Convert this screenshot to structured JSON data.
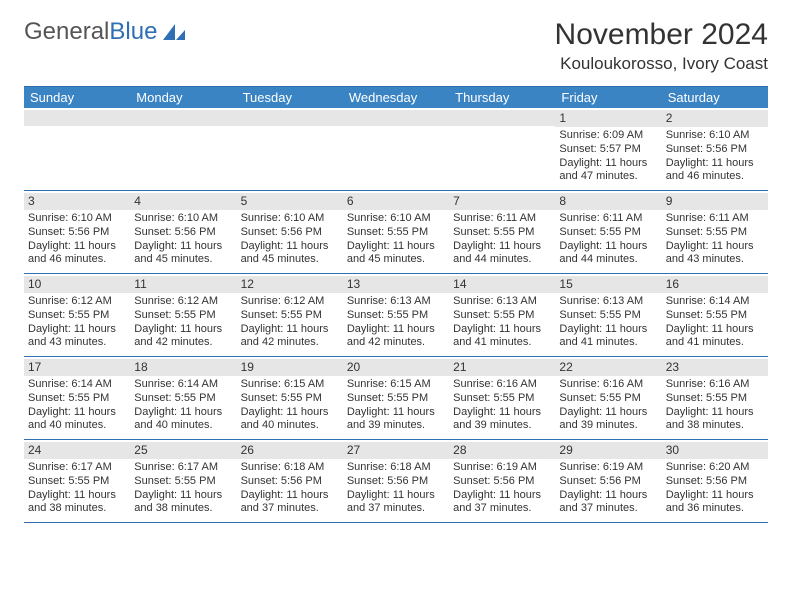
{
  "logo": {
    "part1": "General",
    "part2": "Blue"
  },
  "title": "November 2024",
  "location": "Kouloukorosso, Ivory Coast",
  "day_headers": [
    "Sunday",
    "Monday",
    "Tuesday",
    "Wednesday",
    "Thursday",
    "Friday",
    "Saturday"
  ],
  "colors": {
    "header_bg": "#3b84c4",
    "border": "#2f6fb3",
    "row_stripe": "#e6e6e6",
    "text": "#333333",
    "logo_gray": "#555555",
    "logo_blue": "#2f6fb3"
  },
  "weeks": [
    [
      null,
      null,
      null,
      null,
      null,
      {
        "n": "1",
        "sr": "Sunrise: 6:09 AM",
        "ss": "Sunset: 5:57 PM",
        "d1": "Daylight: 11 hours",
        "d2": "and 47 minutes."
      },
      {
        "n": "2",
        "sr": "Sunrise: 6:10 AM",
        "ss": "Sunset: 5:56 PM",
        "d1": "Daylight: 11 hours",
        "d2": "and 46 minutes."
      }
    ],
    [
      {
        "n": "3",
        "sr": "Sunrise: 6:10 AM",
        "ss": "Sunset: 5:56 PM",
        "d1": "Daylight: 11 hours",
        "d2": "and 46 minutes."
      },
      {
        "n": "4",
        "sr": "Sunrise: 6:10 AM",
        "ss": "Sunset: 5:56 PM",
        "d1": "Daylight: 11 hours",
        "d2": "and 45 minutes."
      },
      {
        "n": "5",
        "sr": "Sunrise: 6:10 AM",
        "ss": "Sunset: 5:56 PM",
        "d1": "Daylight: 11 hours",
        "d2": "and 45 minutes."
      },
      {
        "n": "6",
        "sr": "Sunrise: 6:10 AM",
        "ss": "Sunset: 5:55 PM",
        "d1": "Daylight: 11 hours",
        "d2": "and 45 minutes."
      },
      {
        "n": "7",
        "sr": "Sunrise: 6:11 AM",
        "ss": "Sunset: 5:55 PM",
        "d1": "Daylight: 11 hours",
        "d2": "and 44 minutes."
      },
      {
        "n": "8",
        "sr": "Sunrise: 6:11 AM",
        "ss": "Sunset: 5:55 PM",
        "d1": "Daylight: 11 hours",
        "d2": "and 44 minutes."
      },
      {
        "n": "9",
        "sr": "Sunrise: 6:11 AM",
        "ss": "Sunset: 5:55 PM",
        "d1": "Daylight: 11 hours",
        "d2": "and 43 minutes."
      }
    ],
    [
      {
        "n": "10",
        "sr": "Sunrise: 6:12 AM",
        "ss": "Sunset: 5:55 PM",
        "d1": "Daylight: 11 hours",
        "d2": "and 43 minutes."
      },
      {
        "n": "11",
        "sr": "Sunrise: 6:12 AM",
        "ss": "Sunset: 5:55 PM",
        "d1": "Daylight: 11 hours",
        "d2": "and 42 minutes."
      },
      {
        "n": "12",
        "sr": "Sunrise: 6:12 AM",
        "ss": "Sunset: 5:55 PM",
        "d1": "Daylight: 11 hours",
        "d2": "and 42 minutes."
      },
      {
        "n": "13",
        "sr": "Sunrise: 6:13 AM",
        "ss": "Sunset: 5:55 PM",
        "d1": "Daylight: 11 hours",
        "d2": "and 42 minutes."
      },
      {
        "n": "14",
        "sr": "Sunrise: 6:13 AM",
        "ss": "Sunset: 5:55 PM",
        "d1": "Daylight: 11 hours",
        "d2": "and 41 minutes."
      },
      {
        "n": "15",
        "sr": "Sunrise: 6:13 AM",
        "ss": "Sunset: 5:55 PM",
        "d1": "Daylight: 11 hours",
        "d2": "and 41 minutes."
      },
      {
        "n": "16",
        "sr": "Sunrise: 6:14 AM",
        "ss": "Sunset: 5:55 PM",
        "d1": "Daylight: 11 hours",
        "d2": "and 41 minutes."
      }
    ],
    [
      {
        "n": "17",
        "sr": "Sunrise: 6:14 AM",
        "ss": "Sunset: 5:55 PM",
        "d1": "Daylight: 11 hours",
        "d2": "and 40 minutes."
      },
      {
        "n": "18",
        "sr": "Sunrise: 6:14 AM",
        "ss": "Sunset: 5:55 PM",
        "d1": "Daylight: 11 hours",
        "d2": "and 40 minutes."
      },
      {
        "n": "19",
        "sr": "Sunrise: 6:15 AM",
        "ss": "Sunset: 5:55 PM",
        "d1": "Daylight: 11 hours",
        "d2": "and 40 minutes."
      },
      {
        "n": "20",
        "sr": "Sunrise: 6:15 AM",
        "ss": "Sunset: 5:55 PM",
        "d1": "Daylight: 11 hours",
        "d2": "and 39 minutes."
      },
      {
        "n": "21",
        "sr": "Sunrise: 6:16 AM",
        "ss": "Sunset: 5:55 PM",
        "d1": "Daylight: 11 hours",
        "d2": "and 39 minutes."
      },
      {
        "n": "22",
        "sr": "Sunrise: 6:16 AM",
        "ss": "Sunset: 5:55 PM",
        "d1": "Daylight: 11 hours",
        "d2": "and 39 minutes."
      },
      {
        "n": "23",
        "sr": "Sunrise: 6:16 AM",
        "ss": "Sunset: 5:55 PM",
        "d1": "Daylight: 11 hours",
        "d2": "and 38 minutes."
      }
    ],
    [
      {
        "n": "24",
        "sr": "Sunrise: 6:17 AM",
        "ss": "Sunset: 5:55 PM",
        "d1": "Daylight: 11 hours",
        "d2": "and 38 minutes."
      },
      {
        "n": "25",
        "sr": "Sunrise: 6:17 AM",
        "ss": "Sunset: 5:55 PM",
        "d1": "Daylight: 11 hours",
        "d2": "and 38 minutes."
      },
      {
        "n": "26",
        "sr": "Sunrise: 6:18 AM",
        "ss": "Sunset: 5:56 PM",
        "d1": "Daylight: 11 hours",
        "d2": "and 37 minutes."
      },
      {
        "n": "27",
        "sr": "Sunrise: 6:18 AM",
        "ss": "Sunset: 5:56 PM",
        "d1": "Daylight: 11 hours",
        "d2": "and 37 minutes."
      },
      {
        "n": "28",
        "sr": "Sunrise: 6:19 AM",
        "ss": "Sunset: 5:56 PM",
        "d1": "Daylight: 11 hours",
        "d2": "and 37 minutes."
      },
      {
        "n": "29",
        "sr": "Sunrise: 6:19 AM",
        "ss": "Sunset: 5:56 PM",
        "d1": "Daylight: 11 hours",
        "d2": "and 37 minutes."
      },
      {
        "n": "30",
        "sr": "Sunrise: 6:20 AM",
        "ss": "Sunset: 5:56 PM",
        "d1": "Daylight: 11 hours",
        "d2": "and 36 minutes."
      }
    ]
  ]
}
